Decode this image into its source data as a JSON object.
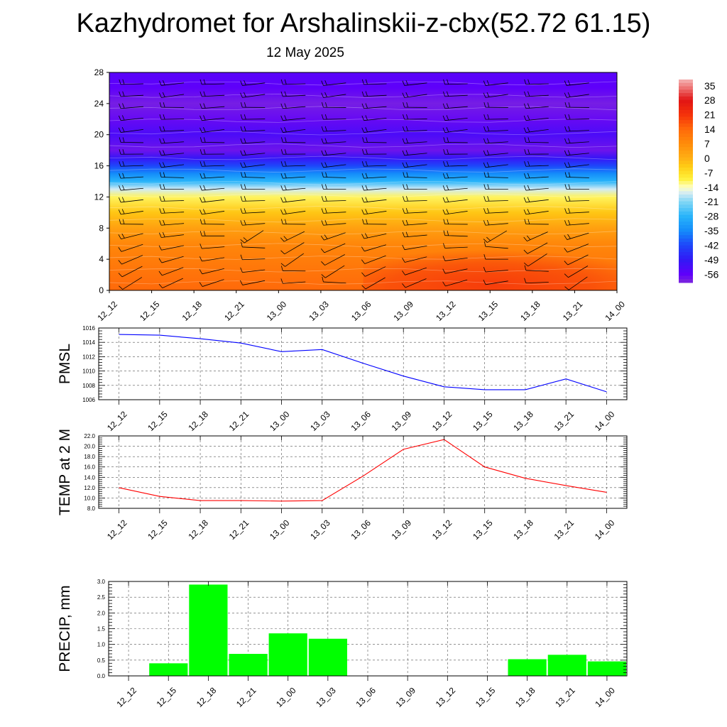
{
  "header": {
    "title": "Kazhydromet for Arshalinskii-z-cbx(52.72 61.15)",
    "subtitle": "12 May 2025"
  },
  "time_labels": [
    "12_12",
    "12_15",
    "12_18",
    "12_21",
    "13_00",
    "13_03",
    "13_06",
    "13_09",
    "13_12",
    "13_15",
    "13_18",
    "13_21",
    "14_00"
  ],
  "chart_data": [
    {
      "type": "heatmap",
      "title": "",
      "xlabel": "",
      "ylabel": "",
      "x": [
        "12_12",
        "12_15",
        "12_18",
        "12_21",
        "13_00",
        "13_03",
        "13_06",
        "13_09",
        "13_12",
        "13_15",
        "13_18",
        "13_21",
        "14_00"
      ],
      "y_ticks": [
        0,
        4,
        8,
        12,
        16,
        20,
        24,
        28
      ],
      "ylim": [
        0,
        28
      ],
      "colorbar_levels": [
        35,
        28,
        21,
        14,
        7,
        0,
        -7,
        -14,
        -21,
        -28,
        -35,
        -42,
        -49,
        -56
      ],
      "colorbar_range": [
        -60,
        38
      ],
      "profile_by_level": [
        {
          "level": 0,
          "value": 14
        },
        {
          "level": 2,
          "value": 12
        },
        {
          "level": 4,
          "value": 10
        },
        {
          "level": 6,
          "value": 8
        },
        {
          "level": 8,
          "value": 3
        },
        {
          "level": 10,
          "value": -3
        },
        {
          "level": 12,
          "value": -11
        },
        {
          "level": 13,
          "value": -17
        },
        {
          "level": 14,
          "value": -28
        },
        {
          "level": 15,
          "value": -35
        },
        {
          "level": 16,
          "value": -42
        },
        {
          "level": 17,
          "value": -50
        },
        {
          "level": 18,
          "value": -58
        },
        {
          "level": 20,
          "value": -53
        },
        {
          "level": 22,
          "value": -57
        },
        {
          "level": 24,
          "value": -59
        },
        {
          "level": 26,
          "value": -56
        },
        {
          "level": 28,
          "value": -55
        }
      ],
      "warm_region": {
        "x_from": "13_06",
        "x_to": "14_00",
        "level_to": 7,
        "value": 20
      },
      "grid": false,
      "legend": "colorbar-right"
    },
    {
      "type": "line",
      "title": "",
      "xlabel": "",
      "ylabel": "PMSL",
      "x": [
        "12_12",
        "12_15",
        "12_18",
        "12_21",
        "13_00",
        "13_03",
        "13_06",
        "13_09",
        "13_12",
        "13_15",
        "13_18",
        "13_21",
        "14_00"
      ],
      "y_ticks": [
        1006,
        1008,
        1010,
        1012,
        1014,
        1016
      ],
      "ylim": [
        1006,
        1016
      ],
      "series": [
        {
          "values": [
            1015.1,
            1015.0,
            1014.5,
            1013.9,
            1012.7,
            1013.0,
            1011.1,
            1009.3,
            1007.8,
            1007.4,
            1007.4,
            1008.9,
            1007.1
          ],
          "color": "#0000ff"
        }
      ],
      "grid": true
    },
    {
      "type": "line",
      "title": "",
      "xlabel": "",
      "ylabel": "TEMP at 2 M",
      "x": [
        "12_12",
        "12_15",
        "12_18",
        "12_21",
        "13_00",
        "13_03",
        "13_06",
        "13_09",
        "13_12",
        "13_15",
        "13_18",
        "13_21",
        "14_00"
      ],
      "y_ticks": [
        "8.0",
        "10.0",
        "12.0",
        "14.0",
        "16.0",
        "18.0",
        "20.0",
        "22.0"
      ],
      "ylim": [
        8,
        22
      ],
      "series": [
        {
          "values": [
            12.0,
            10.3,
            9.5,
            9.5,
            9.4,
            9.5,
            14.2,
            19.4,
            21.3,
            16.0,
            13.8,
            12.4,
            11.1
          ],
          "color": "#ff0000"
        }
      ],
      "grid": true
    },
    {
      "type": "bar",
      "title": "",
      "xlabel": "",
      "ylabel": "PRECIP, mm",
      "categories": [
        "12_12",
        "12_15",
        "12_18",
        "12_21",
        "13_00",
        "13_03",
        "13_06",
        "13_09",
        "13_12",
        "13_15",
        "13_18",
        "13_21",
        "14_00"
      ],
      "y_ticks": [
        "0.0",
        "0.5",
        "1.0",
        "1.5",
        "2.0",
        "2.5",
        "3.0"
      ],
      "ylim": [
        0,
        3
      ],
      "series": [
        {
          "values": [
            0,
            0.4,
            2.9,
            0.7,
            1.35,
            1.18,
            0,
            0,
            0,
            0,
            0.53,
            0.67,
            0.46
          ],
          "color": "#00ff00"
        }
      ],
      "grid": true
    }
  ]
}
